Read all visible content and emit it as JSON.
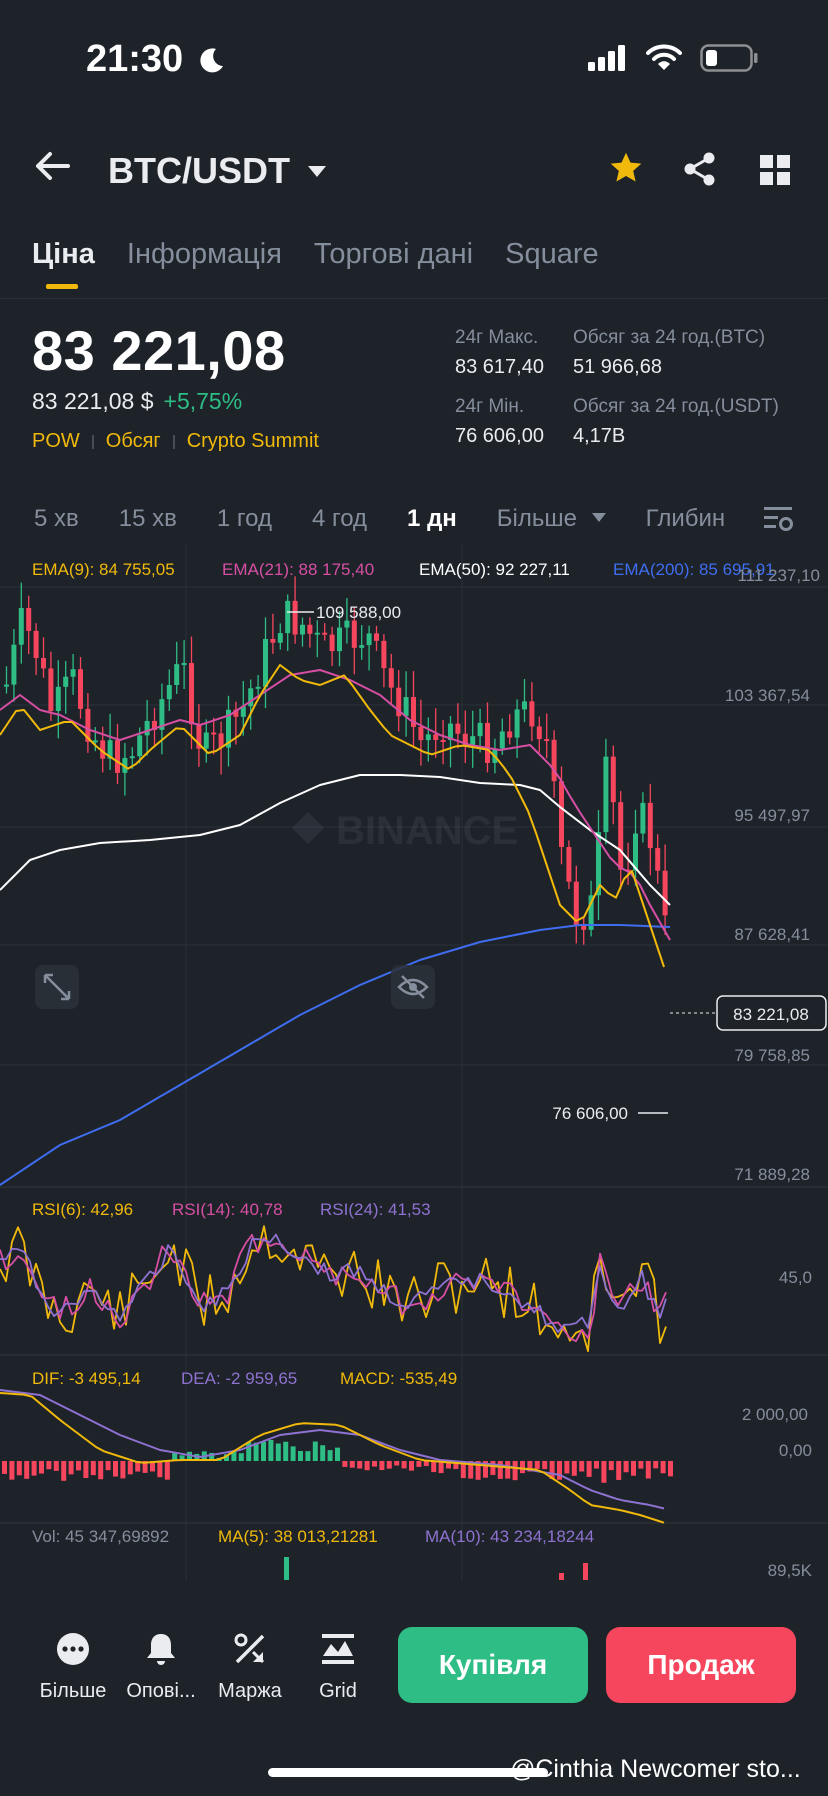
{
  "status_bar": {
    "time": "21:30",
    "moon_icon": "moon-icon",
    "signal_icon": "cellular-signal-icon",
    "wifi_icon": "wifi-icon",
    "battery_icon": "battery-low-icon"
  },
  "header": {
    "pair": "BTC/USDT",
    "back_icon": "arrow-left-icon",
    "star_icon": "star-icon",
    "share_icon": "share-icon",
    "grid_icon": "grid-icon",
    "star_color": "#f0b90b"
  },
  "tabs": [
    {
      "label": "Ціна",
      "active": true
    },
    {
      "label": "Інформація",
      "active": false
    },
    {
      "label": "Торгові дані",
      "active": false
    },
    {
      "label": "Square",
      "active": false
    }
  ],
  "price": {
    "last": "83 221,08",
    "sub_price": "83 221,08 $",
    "change": "+5,75%",
    "tags": [
      "POW",
      "Обсяг",
      "Crypto Summit"
    ]
  },
  "stats": {
    "high_label": "24г Макс.",
    "high_value": "83 617,40",
    "low_label": "24г Мін.",
    "low_value": "76 606,00",
    "vol_btc_label": "Обсяг за 24 год.(BTC)",
    "vol_btc_value": "51 966,68",
    "vol_usdt_label": "Обсяг за 24 год.(USDT)",
    "vol_usdt_value": "4,17B"
  },
  "timeframes": [
    "5 хв",
    "15 хв",
    "1 год",
    "4 год",
    "1 дн",
    "Більше",
    "Глибин"
  ],
  "timeframe_active": "1 дн",
  "settings_icon": "chart-settings-icon",
  "ema_legend": [
    {
      "label": "EMA(9): 84 755,05",
      "color": "#f0b90b"
    },
    {
      "label": "EMA(21): 88 175,40",
      "color": "#d64fa4"
    },
    {
      "label": "EMA(50): 92 227,11",
      "color": "#ffffff"
    },
    {
      "label": "EMA(200): 85 695,91",
      "color": "#3f6df0"
    }
  ],
  "price_axis": [
    "111 237,10",
    "103 367,54",
    "95 497,97",
    "87 628,41",
    "79 758,85",
    "71 889,28"
  ],
  "current_price_tag": "83 221,08",
  "high_marker": "109 588,00",
  "low_marker": "76 606,00",
  "watermark": "BINANCE",
  "expand_icon": "expand-icon",
  "eye_off_icon": "eye-off-icon",
  "rsi_legend": [
    {
      "label": "RSI(6): 42,96",
      "color": "#f0b90b"
    },
    {
      "label": "RSI(14): 40,78",
      "color": "#d64fa4"
    },
    {
      "label": "RSI(24): 41,53",
      "color": "#8e72d1"
    }
  ],
  "rsi_axis": "45,0",
  "macd_legend": [
    {
      "label": "DIF: -3 495,14",
      "color": "#f0b90b"
    },
    {
      "label": "DEA: -2 959,65",
      "color": "#8e72d1"
    },
    {
      "label": "MACD: -535,49",
      "color": "#f0b90b"
    }
  ],
  "macd_axis": [
    "2 000,00",
    "0,00"
  ],
  "vol_legend": [
    {
      "label": "Vol: 45 347,69892",
      "color": "#848e9c"
    },
    {
      "label": "MA(5): 38 013,21281",
      "color": "#f0b90b"
    },
    {
      "label": "MA(10): 43 234,18244",
      "color": "#8e72d1"
    }
  ],
  "vol_axis": "89,5K",
  "bottom_nav": [
    {
      "label": "Більше",
      "icon": "more-dots-icon"
    },
    {
      "label": "Опові...",
      "icon": "bell-icon"
    },
    {
      "label": "Маржа",
      "icon": "margin-percent-icon"
    },
    {
      "label": "Grid",
      "icon": "grid-bot-icon"
    }
  ],
  "buy_label": "Купівля",
  "sell_label": "Продаж",
  "caption": "@Cinthia Newcomer sto..."
}
